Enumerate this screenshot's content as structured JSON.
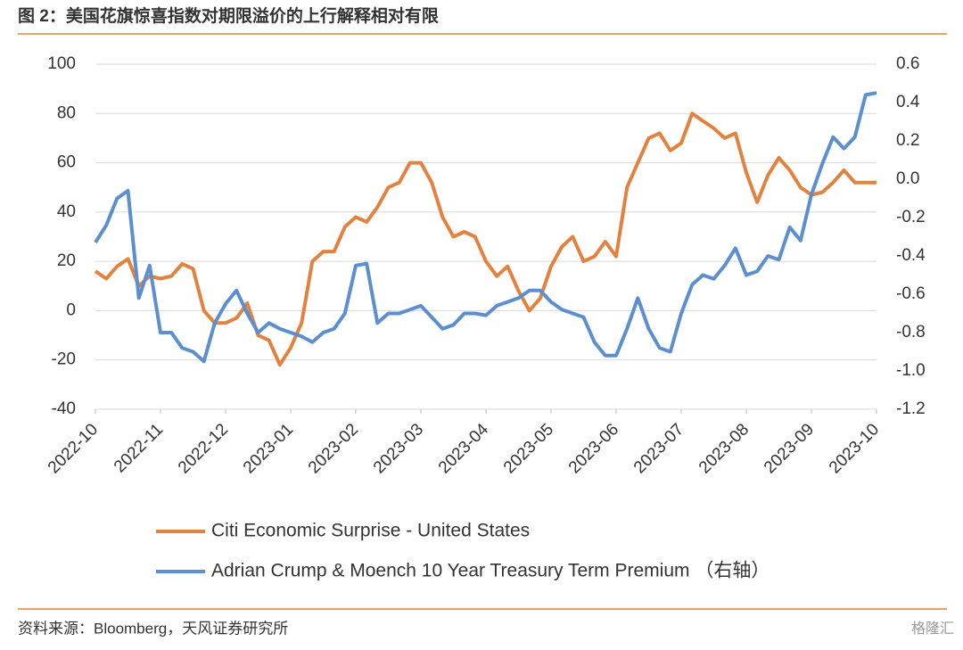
{
  "header": {
    "title": "图 2：美国花旗惊喜指数对期限溢价的上行解释相对有限"
  },
  "chart_data": {
    "type": "line",
    "categories": [
      "2022-10",
      null,
      null,
      null,
      null,
      null,
      "2022-11",
      null,
      null,
      null,
      null,
      null,
      "2022-12",
      null,
      null,
      null,
      null,
      null,
      "2023-01",
      null,
      null,
      null,
      null,
      null,
      "2023-02",
      null,
      null,
      null,
      null,
      null,
      "2023-03",
      null,
      null,
      null,
      null,
      null,
      "2023-04",
      null,
      null,
      null,
      null,
      null,
      "2023-05",
      null,
      null,
      null,
      null,
      null,
      "2023-06",
      null,
      null,
      null,
      null,
      null,
      "2023-07",
      null,
      null,
      null,
      null,
      null,
      "2023-08",
      null,
      null,
      null,
      null,
      null,
      "2023-09",
      null,
      null,
      null,
      null,
      null,
      "2023-10"
    ],
    "series": [
      {
        "name": "Citi Economic Surprise - United States",
        "color": "#e2823e",
        "values": [
          16,
          13,
          18,
          21,
          10,
          14,
          13,
          14,
          19,
          17,
          0,
          -5,
          -5,
          -3,
          3,
          -10,
          -12,
          -22,
          -15,
          -5,
          20,
          24,
          24,
          34,
          38,
          36,
          42,
          50,
          52,
          60,
          60,
          52,
          38,
          30,
          32,
          30,
          20,
          14,
          18,
          8,
          0,
          5,
          18,
          26,
          30,
          20,
          22,
          28,
          22,
          50,
          60,
          70,
          72,
          65,
          68,
          80,
          77,
          74,
          70,
          72,
          56,
          44,
          55,
          62,
          57,
          50,
          47,
          48,
          52,
          57,
          52,
          52,
          52
        ]
      },
      {
        "name": "Adrian Crump & Moench 10 Year Treasury Term Premium （右轴）",
        "color": "#5b8fd0",
        "axis": "y2",
        "values": [
          -0.33,
          -0.24,
          -0.1,
          -0.06,
          -0.62,
          -0.45,
          -0.8,
          -0.8,
          -0.88,
          -0.9,
          -0.95,
          -0.75,
          -0.65,
          -0.58,
          -0.7,
          -0.8,
          -0.75,
          -0.78,
          -0.8,
          -0.82,
          -0.85,
          -0.8,
          -0.78,
          -0.7,
          -0.45,
          -0.44,
          -0.75,
          -0.7,
          -0.7,
          -0.68,
          -0.66,
          -0.72,
          -0.78,
          -0.76,
          -0.7,
          -0.7,
          -0.71,
          -0.66,
          -0.64,
          -0.62,
          -0.58,
          -0.58,
          -0.64,
          -0.68,
          -0.7,
          -0.72,
          -0.85,
          -0.92,
          -0.92,
          -0.78,
          -0.62,
          -0.78,
          -0.88,
          -0.9,
          -0.7,
          -0.55,
          -0.5,
          -0.52,
          -0.45,
          -0.36,
          -0.5,
          -0.48,
          -0.4,
          -0.42,
          -0.25,
          -0.32,
          -0.08,
          0.08,
          0.22,
          0.16,
          0.22,
          0.44,
          0.45
        ]
      }
    ],
    "ylim": [
      -40,
      100
    ],
    "yticks": [
      100,
      80,
      60,
      40,
      20,
      0,
      -20,
      -40
    ],
    "y2lim": [
      -1.2,
      0.6
    ],
    "y2ticks": [
      0.6,
      0.4,
      0.2,
      {
        "value": 0,
        "label": "0.0"
      },
      -0.2,
      -0.4,
      -0.6,
      -0.8,
      {
        "value": -1,
        "label": "-1.0"
      },
      -1.2
    ],
    "grid": true
  },
  "footer": {
    "source": "资料来源：Bloomberg，天风证券研究所",
    "watermark": "格隆汇"
  }
}
